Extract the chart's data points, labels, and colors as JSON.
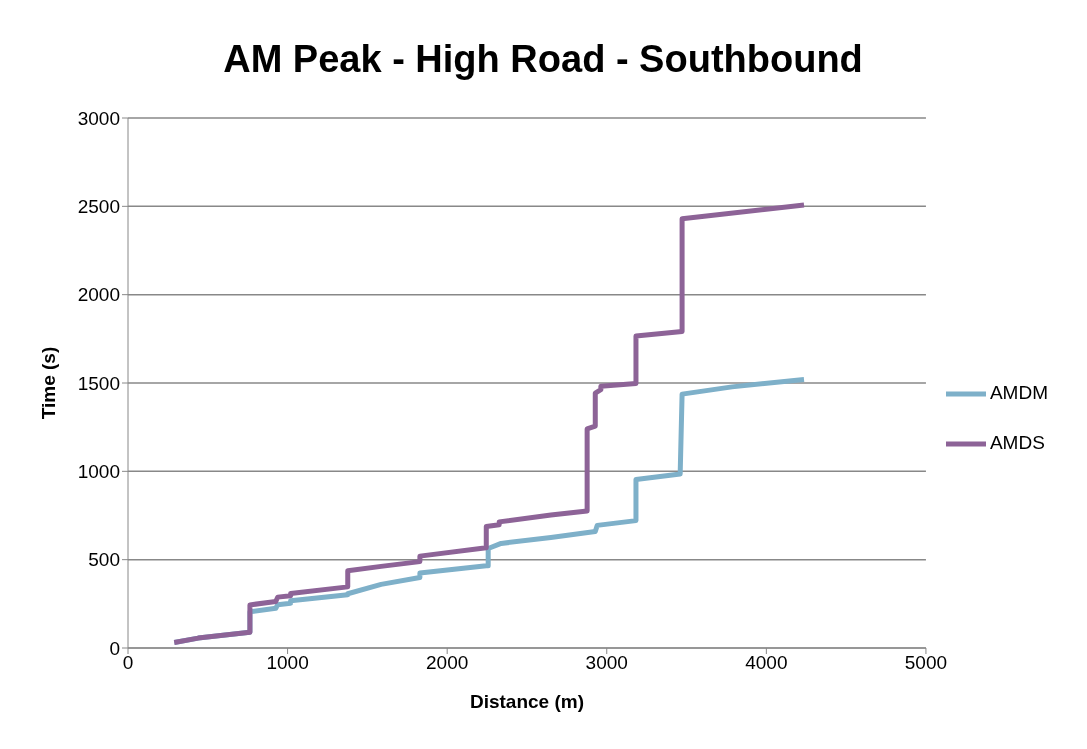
{
  "chart_data": {
    "type": "line",
    "title": "AM Peak - High Road - Southbound",
    "xlabel": "Distance (m)",
    "ylabel": "Time (s)",
    "xlim": [
      0,
      5000
    ],
    "xticks": [
      0,
      1000,
      2000,
      3000,
      4000,
      5000
    ],
    "ylim": [
      0,
      3000
    ],
    "yticks": [
      0,
      500,
      1000,
      1500,
      2000,
      2500,
      3000
    ],
    "grid": "y",
    "legend": "right",
    "marker": "none",
    "line_style": "solid",
    "series": [
      {
        "name": "AMDM",
        "color": "#7eb0c9",
        "x": [
          290,
          440,
          764,
          764,
          926,
          938,
          1019,
          1019,
          1377,
          1377,
          1586,
          1829,
          1829,
          2245,
          2257,
          2257,
          2338,
          2650,
          2928,
          2940,
          3183,
          3183,
          3460,
          3472,
          3785,
          4236
        ],
        "values": [
          31,
          56,
          89,
          205,
          225,
          245,
          253,
          268,
          302,
          307,
          360,
          399,
          424,
          466,
          466,
          563,
          592,
          625,
          660,
          694,
          721,
          954,
          985,
          1437,
          1478,
          1520
        ]
      },
      {
        "name": "AMDS",
        "color": "#8d6397",
        "x": [
          290,
          440,
          764,
          764,
          926,
          938,
          1019,
          1019,
          1377,
          1377,
          1586,
          1829,
          1829,
          2245,
          2245,
          2326,
          2326,
          2650,
          2877,
          2877,
          2928,
          2928,
          2963,
          2963,
          3183,
          3183,
          3472,
          3472,
          4236
        ],
        "values": [
          31,
          56,
          89,
          244,
          263,
          288,
          296,
          308,
          346,
          437,
          462,
          489,
          520,
          567,
          688,
          698,
          714,
          753,
          776,
          1240,
          1256,
          1443,
          1462,
          1482,
          1497,
          1766,
          1791,
          2430,
          2507
        ]
      }
    ]
  }
}
